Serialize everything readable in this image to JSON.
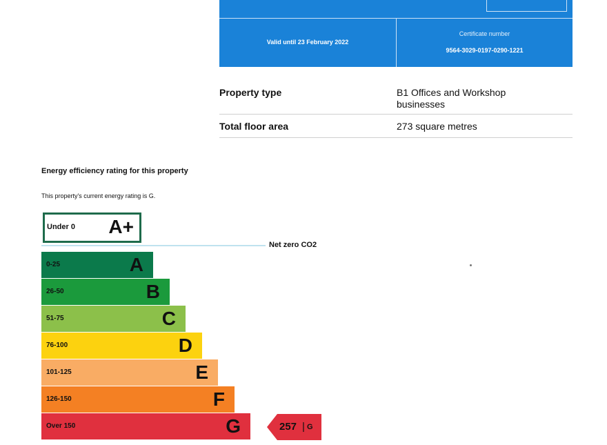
{
  "certificate": {
    "valid_until": "Valid until 23 February 2022",
    "number_label": "Certificate number",
    "number": "9564-3029-0197-0290-1221",
    "header_color": "#1a82d8"
  },
  "property": {
    "type_label": "Property type",
    "type_value_line1": "B1 Offices and Workshop",
    "type_value_line2": "businesses",
    "area_label": "Total floor area",
    "area_value": "273 square metres"
  },
  "rating": {
    "heading": "Energy efficiency rating for this property",
    "current_text": "This property's current energy rating is G.",
    "aplus": {
      "range": "Under 0",
      "letter": "A+"
    },
    "net_zero_label": "Net zero CO2",
    "bands": [
      {
        "range": "0-25",
        "letter": "A",
        "color": "#0b7a4b"
      },
      {
        "range": "26-50",
        "letter": "B",
        "color": "#1b9a3c"
      },
      {
        "range": "51-75",
        "letter": "C",
        "color": "#8cc04a"
      },
      {
        "range": "76-100",
        "letter": "D",
        "color": "#fcd20f"
      },
      {
        "range": "101-125",
        "letter": "E",
        "color": "#f9ac64"
      },
      {
        "range": "126-150",
        "letter": "F",
        "color": "#f48023"
      },
      {
        "range": "Over 150",
        "letter": "G",
        "color": "#e0303e"
      }
    ],
    "current": {
      "score": "257",
      "separator": "|",
      "grade": "G",
      "color": "#e0303e"
    }
  }
}
